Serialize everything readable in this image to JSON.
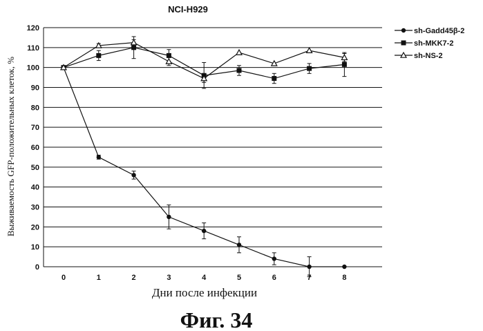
{
  "chart_data": {
    "type": "line",
    "title": "NCI-H929",
    "xlabel": "Дни после инфекции",
    "ylabel": "Выживаемость GFP-положительных клеток, %",
    "x": [
      0,
      1,
      2,
      3,
      4,
      5,
      6,
      7,
      8
    ],
    "x_tick_labels": [
      "0",
      "1",
      "2",
      "3",
      "4",
      "5",
      "6",
      "7",
      "8"
    ],
    "xlim": [
      0,
      8
    ],
    "ylim": [
      0,
      120
    ],
    "y_ticks": [
      0,
      10,
      20,
      30,
      40,
      50,
      60,
      70,
      80,
      90,
      100,
      110,
      120
    ],
    "grid": true,
    "legend_position": "top-right",
    "series": [
      {
        "name": "sh-Gadd45β-2",
        "marker": "circle",
        "values": [
          100,
          55,
          46,
          25,
          18,
          11,
          4,
          0,
          0
        ],
        "errors": [
          0,
          1,
          2,
          6,
          4,
          4,
          3,
          5,
          0
        ]
      },
      {
        "name": "sh-MKK7-2",
        "marker": "square",
        "values": [
          100,
          106,
          110,
          106,
          96,
          98.5,
          94.5,
          99.5,
          101.5
        ],
        "errors": [
          0,
          2.5,
          5.5,
          3,
          6.5,
          2.5,
          2.5,
          2.5,
          6
        ]
      },
      {
        "name": "sh-NS-2",
        "marker": "triangle",
        "values": [
          100,
          111,
          112.5,
          103,
          94.5,
          107.5,
          102,
          108.5,
          105
        ],
        "errors": [
          0,
          1,
          1.5,
          2,
          2,
          0,
          0,
          0,
          2
        ]
      }
    ]
  },
  "caption": "Фиг. 34",
  "colors": {
    "ink": "#111111",
    "background": "#ffffff"
  }
}
